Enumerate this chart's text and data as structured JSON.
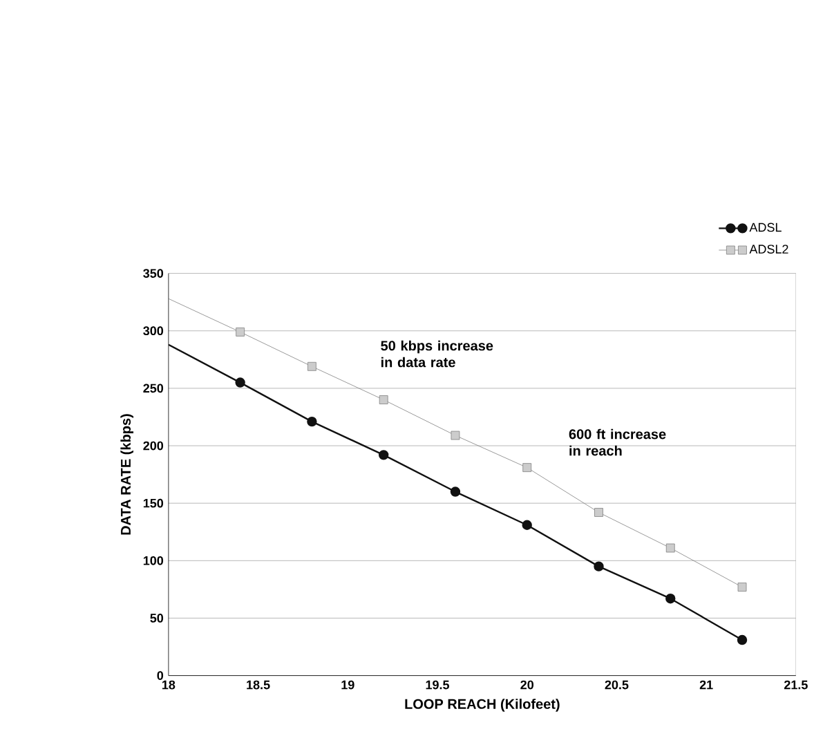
{
  "chart_data": {
    "type": "line",
    "xlabel": "LOOP REACH (Kilofeet)",
    "ylabel": "DATA RATE (kbps)",
    "xlim": [
      18,
      21.5
    ],
    "xticks": [
      18,
      18.5,
      19,
      19.5,
      20,
      20.5,
      21,
      21.5
    ],
    "ylim": [
      0,
      350
    ],
    "yticks": [
      0,
      50,
      100,
      150,
      200,
      250,
      300,
      350
    ],
    "grid": "y",
    "legend": "top right",
    "line_style": "solid",
    "annotations": [
      "50 kbps increase\nin data rate",
      "600 ft increase\nin reach"
    ],
    "series": [
      {
        "name": "ADSL",
        "color": "#111111",
        "marker": "circle",
        "x": [
          18,
          18.4,
          18.8,
          19.2,
          19.6,
          20.0,
          20.4,
          20.8,
          21.2
        ],
        "values": [
          288,
          255,
          221,
          192,
          160,
          131,
          95,
          67,
          31
        ]
      },
      {
        "name": "ADSL2",
        "color": "#808080",
        "marker": "square",
        "x": [
          18,
          18.4,
          18.8,
          19.2,
          19.6,
          20.0,
          20.4,
          20.8,
          21.2
        ],
        "values": [
          328,
          299,
          269,
          240,
          209,
          181,
          142,
          111,
          77
        ]
      }
    ]
  }
}
